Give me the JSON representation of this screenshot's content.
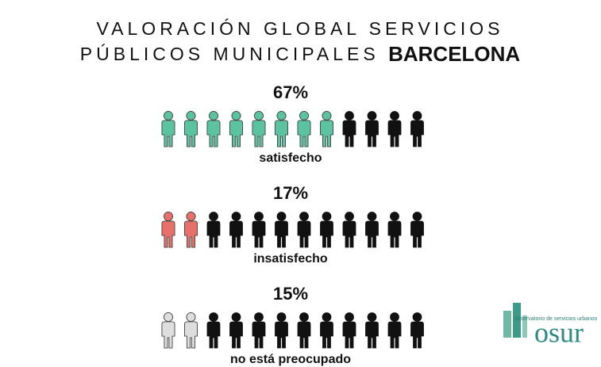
{
  "chart_data": {
    "type": "pictograph",
    "title": {
      "line1": "VALORACIÓN GLOBAL SERVICIOS",
      "line2": "PÚBLICOS MUNICIPALES",
      "highlight": "BARCELONA"
    },
    "categories": [
      "satisfecho",
      "insatisfecho",
      "no está preocupado"
    ],
    "values": [
      67,
      17,
      15
    ],
    "value_labels": [
      "67%",
      "17%",
      "15%"
    ],
    "colors": [
      "#5cc3a0",
      "#e8706a",
      "#dedede"
    ],
    "base_color": "#111111",
    "logo": {
      "caption": "observatorio de servicios urbanos",
      "name": "osur"
    }
  }
}
